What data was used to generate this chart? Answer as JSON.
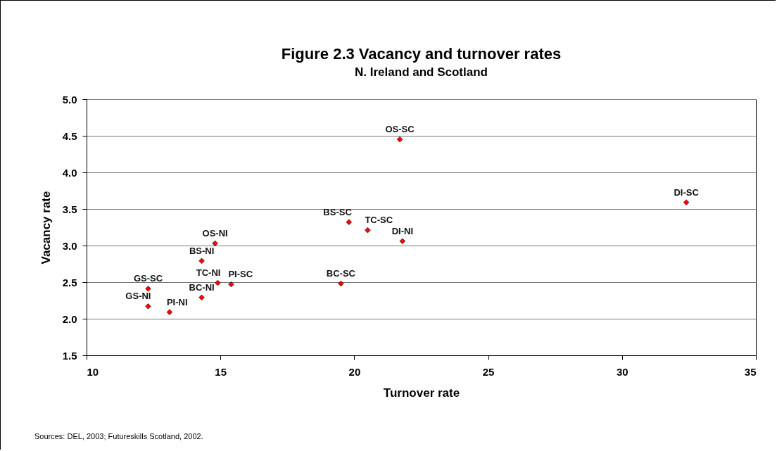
{
  "chart_data": {
    "type": "scatter",
    "title": "Figure 2.3 Vacancy and turnover rates",
    "subtitle": "N. Ireland and Scotland",
    "xlabel": "Turnover rate",
    "ylabel": "Vacancy rate",
    "x": [
      21.7,
      32.4,
      19.8,
      20.5,
      21.8,
      19.5,
      14.8,
      14.3,
      14.9,
      15.4,
      12.3,
      12.3,
      13.1,
      14.3
    ],
    "values": [
      4.45,
      3.59,
      3.32,
      3.21,
      3.06,
      2.48,
      3.03,
      2.79,
      2.49,
      2.47,
      2.41,
      2.17,
      2.09,
      2.29
    ],
    "color": "#ff0000",
    "marker": "diamond",
    "grid": "y",
    "xlim": [
      10,
      35
    ],
    "xticks": [
      10,
      15,
      20,
      25,
      30,
      35
    ],
    "ylim": [
      1.5,
      5
    ],
    "yticks": [
      1.5,
      {
        "value": 2,
        "label": "2.0"
      },
      2.5,
      {
        "value": 3,
        "label": "3.0"
      },
      3.5,
      {
        "value": 4,
        "label": "4.0"
      },
      4.5,
      {
        "value": 5,
        "label": "5.0"
      }
    ],
    "annotations": [
      {
        "text": "OS-SC",
        "x": 21.7,
        "y": 4.45
      },
      {
        "text": "DI-SC",
        "x": 32.4,
        "y": 3.59
      },
      {
        "text": "BS-SC",
        "x": 19.8,
        "y": 3.32
      },
      {
        "text": "TC-SC",
        "x": 20.5,
        "y": 3.21
      },
      {
        "text": "DI-NI",
        "x": 21.8,
        "y": 3.06
      },
      {
        "text": "BC-SC",
        "x": 19.5,
        "y": 2.48
      },
      {
        "text": "OS-NI",
        "x": 14.8,
        "y": 3.03
      },
      {
        "text": "BS-NI",
        "x": 14.3,
        "y": 2.79
      },
      {
        "text": "TC-NI",
        "x": 14.9,
        "y": 2.49
      },
      {
        "text": "PI-SC",
        "x": 15.4,
        "y": 2.47
      },
      {
        "text": "GS-SC",
        "x": 12.3,
        "y": 2.41
      },
      {
        "text": "GS-NI",
        "x": 12.3,
        "y": 2.17
      },
      {
        "text": "PI-NI",
        "x": 13.1,
        "y": 2.09
      },
      {
        "text": "BC-NI",
        "x": 14.3,
        "y": 2.29
      },
      "Sources: DEL, 2003;  Futureskills Scotland, 2002."
    ]
  }
}
